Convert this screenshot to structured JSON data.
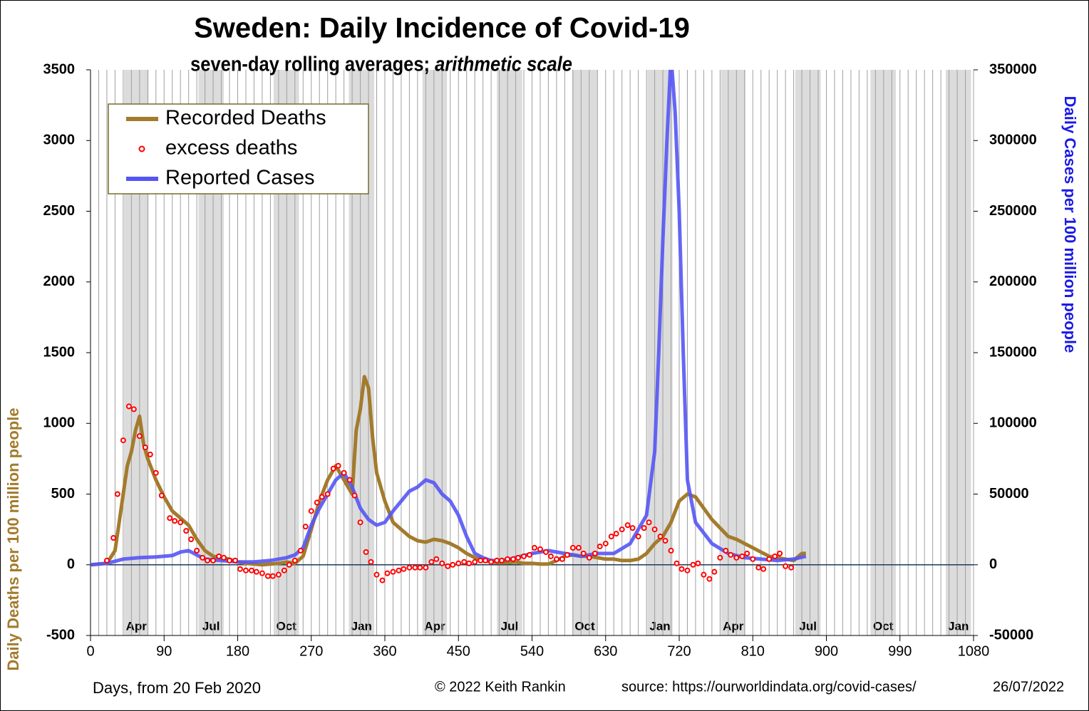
{
  "chart_data": {
    "type": "line",
    "title": "Sweden: Daily Incidence of Covid-19",
    "subtitle": "seven-day rolling averages; ",
    "subtitle_italic": "arithmetic scale",
    "ylabel": "Daily Deaths per 100 million people",
    "y2label": "Daily Cases per 100 million people",
    "xlabel": "Days,  from 20 Feb 2020",
    "credit": "© 2022  Keith Rankin",
    "source": "source: https://ourworldindata.org/covid-cases/",
    "date": "26/07/2022",
    "legend": "upper left",
    "xlim": [
      0,
      1080
    ],
    "xticks": [
      0,
      90,
      180,
      270,
      360,
      450,
      540,
      630,
      720,
      810,
      900,
      990,
      1080
    ],
    "minor_grid_days": 10,
    "ylim": [
      -500,
      3500
    ],
    "yticks": [
      -500,
      0,
      500,
      1000,
      1500,
      2000,
      2500,
      3000,
      3500
    ],
    "y2lim": [
      -50000,
      350000
    ],
    "y2ticks": [
      -50000,
      0,
      50000,
      100000,
      150000,
      200000,
      250000,
      300000,
      350000
    ],
    "month_bands": [
      {
        "label": "Apr",
        "start": 41,
        "end": 71
      },
      {
        "label": "Jul",
        "start": 132,
        "end": 163
      },
      {
        "label": "Oct",
        "start": 224,
        "end": 255
      },
      {
        "label": "Jan",
        "start": 316,
        "end": 347
      },
      {
        "label": "Apr",
        "start": 406,
        "end": 436
      },
      {
        "label": "Jul",
        "start": 497,
        "end": 528
      },
      {
        "label": "Oct",
        "start": 589,
        "end": 620
      },
      {
        "label": "Jan",
        "start": 681,
        "end": 712
      },
      {
        "label": "Apr",
        "start": 771,
        "end": 801
      },
      {
        "label": "Jul",
        "start": 862,
        "end": 893
      },
      {
        "label": "Oct",
        "start": 954,
        "end": 985
      },
      {
        "label": "Jan",
        "start": 1046,
        "end": 1077
      }
    ],
    "series": [
      {
        "name": "Recorded Deaths",
        "color": "#a37b2c",
        "style": "line",
        "x": [
          0,
          20,
          30,
          35,
          40,
          45,
          50,
          55,
          60,
          65,
          70,
          80,
          90,
          100,
          110,
          120,
          130,
          140,
          150,
          160,
          170,
          180,
          190,
          200,
          210,
          220,
          230,
          240,
          250,
          260,
          270,
          280,
          290,
          300,
          310,
          320,
          325,
          330,
          335,
          340,
          345,
          350,
          360,
          370,
          380,
          390,
          400,
          410,
          420,
          430,
          440,
          450,
          460,
          470,
          480,
          490,
          500,
          510,
          520,
          530,
          540,
          550,
          560,
          570,
          580,
          590,
          600,
          610,
          620,
          630,
          640,
          650,
          660,
          670,
          680,
          690,
          700,
          710,
          720,
          730,
          740,
          750,
          760,
          770,
          780,
          790,
          800,
          810,
          820,
          830,
          840,
          850,
          860,
          870,
          875
        ],
        "values": [
          0,
          10,
          100,
          300,
          500,
          700,
          800,
          950,
          1050,
          850,
          750,
          600,
          480,
          380,
          330,
          280,
          180,
          100,
          60,
          50,
          40,
          20,
          10,
          5,
          0,
          5,
          10,
          20,
          10,
          60,
          250,
          450,
          600,
          700,
          600,
          500,
          950,
          1100,
          1330,
          1250,
          900,
          650,
          450,
          300,
          250,
          200,
          170,
          160,
          180,
          170,
          150,
          120,
          80,
          50,
          30,
          20,
          15,
          15,
          20,
          10,
          10,
          5,
          5,
          30,
          60,
          70,
          60,
          60,
          50,
          40,
          40,
          30,
          30,
          40,
          80,
          150,
          200,
          300,
          450,
          500,
          480,
          400,
          320,
          260,
          200,
          180,
          150,
          120,
          90,
          60,
          50,
          40,
          30,
          80,
          80
        ]
      },
      {
        "name": "excess deaths",
        "color": "#ff0000",
        "style": "points",
        "x": [
          20,
          28,
          33,
          40,
          47,
          53,
          60,
          67,
          73,
          80,
          87,
          97,
          103,
          110,
          117,
          123,
          130,
          137,
          143,
          150,
          157,
          163,
          170,
          177,
          183,
          190,
          197,
          203,
          210,
          217,
          223,
          230,
          237,
          243,
          250,
          257,
          263,
          270,
          277,
          283,
          290,
          297,
          303,
          310,
          317,
          323,
          330,
          337,
          343,
          350,
          357,
          363,
          370,
          377,
          383,
          390,
          397,
          403,
          410,
          417,
          423,
          430,
          437,
          443,
          450,
          457,
          463,
          470,
          477,
          483,
          490,
          497,
          503,
          510,
          517,
          523,
          530,
          537,
          543,
          550,
          557,
          563,
          570,
          577,
          583,
          590,
          597,
          603,
          610,
          617,
          623,
          630,
          637,
          643,
          650,
          657,
          663,
          670,
          677,
          683,
          690,
          697,
          703,
          710,
          717,
          723,
          730,
          737,
          743,
          750,
          757,
          763,
          770,
          777,
          783,
          790,
          797,
          803,
          810,
          817,
          823,
          830,
          837,
          843,
          850,
          857
        ],
        "values": [
          30,
          190,
          500,
          880,
          1120,
          1100,
          910,
          830,
          780,
          650,
          490,
          330,
          310,
          300,
          240,
          180,
          100,
          50,
          30,
          30,
          60,
          50,
          30,
          30,
          -30,
          -40,
          -40,
          -50,
          -60,
          -80,
          -80,
          -70,
          -40,
          0,
          30,
          100,
          270,
          380,
          440,
          480,
          500,
          680,
          700,
          650,
          600,
          490,
          300,
          90,
          20,
          -70,
          -110,
          -60,
          -50,
          -40,
          -30,
          -20,
          -20,
          -20,
          -20,
          20,
          40,
          10,
          -10,
          0,
          10,
          20,
          10,
          20,
          30,
          30,
          20,
          30,
          30,
          40,
          40,
          50,
          60,
          70,
          120,
          110,
          90,
          60,
          40,
          40,
          70,
          120,
          120,
          80,
          50,
          80,
          130,
          150,
          200,
          220,
          250,
          280,
          260,
          200,
          260,
          300,
          250,
          200,
          170,
          100,
          10,
          -30,
          -40,
          0,
          10,
          -70,
          -100,
          -50,
          50,
          100,
          70,
          50,
          60,
          80,
          40,
          -20,
          -30,
          40,
          60,
          80,
          -10,
          -20
        ]
      },
      {
        "name": "Reported Cases",
        "color": "#5555f5",
        "style": "line",
        "axis": "y2",
        "x": [
          0,
          20,
          40,
          60,
          80,
          100,
          110,
          120,
          130,
          140,
          160,
          180,
          200,
          220,
          240,
          250,
          260,
          270,
          280,
          290,
          300,
          310,
          320,
          330,
          340,
          350,
          360,
          370,
          380,
          390,
          400,
          410,
          420,
          430,
          440,
          450,
          460,
          470,
          480,
          490,
          500,
          510,
          520,
          540,
          560,
          580,
          600,
          620,
          640,
          660,
          670,
          680,
          690,
          695,
          700,
          705,
          710,
          715,
          720,
          725,
          730,
          740,
          760,
          780,
          800,
          820,
          840,
          860,
          875
        ],
        "values": [
          0,
          1000,
          4000,
          5000,
          5500,
          6500,
          9000,
          10000,
          7000,
          4000,
          3000,
          2000,
          2000,
          3000,
          5000,
          7000,
          12000,
          28000,
          40000,
          50000,
          60000,
          65000,
          55000,
          40000,
          32000,
          28000,
          30000,
          38000,
          45000,
          52000,
          55000,
          60000,
          58000,
          50000,
          45000,
          35000,
          20000,
          8000,
          5000,
          3000,
          3000,
          3500,
          5000,
          8000,
          10000,
          8000,
          6000,
          8000,
          8000,
          15000,
          25000,
          35000,
          80000,
          150000,
          230000,
          300000,
          360000,
          320000,
          250000,
          150000,
          60000,
          30000,
          15000,
          8000,
          5000,
          4000,
          3000,
          4000,
          6000
        ]
      }
    ]
  }
}
